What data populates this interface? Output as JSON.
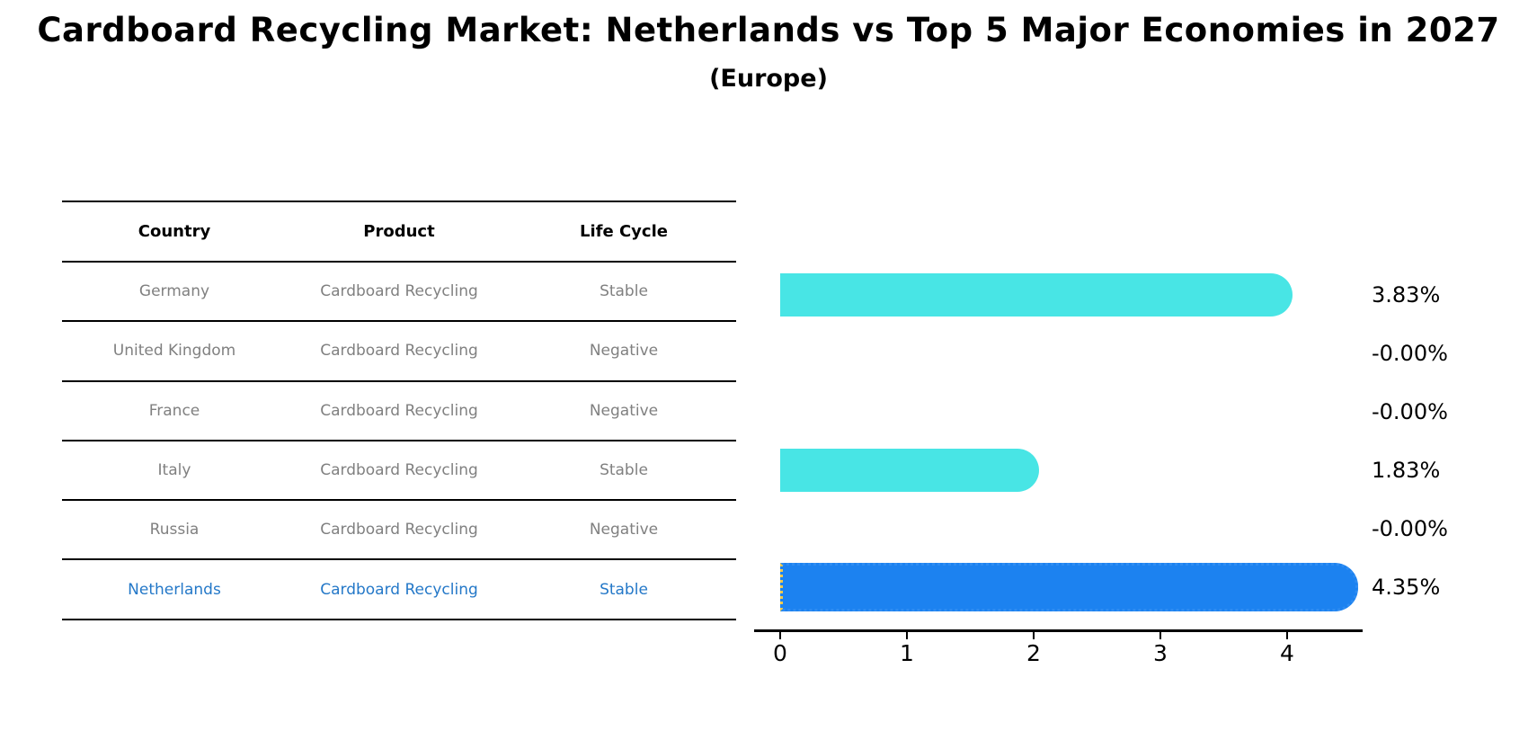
{
  "title": "Cardboard Recycling Market: Netherlands vs Top 5 Major Economies in 2027",
  "subtitle": "(Europe)",
  "colors": {
    "bar_default": "#48E5E5",
    "bar_highlight": "#1C82F0",
    "highlight_text": "#2478C8",
    "table_text": "#808080",
    "highlight_edge_left": "#F0C94B",
    "axis": "#000000"
  },
  "table": {
    "headers": [
      "Country",
      "Product",
      "Life Cycle"
    ],
    "rows": [
      {
        "country": "Germany",
        "product": "Cardboard Recycling",
        "life_cycle": "Stable",
        "highlight": false
      },
      {
        "country": "United Kingdom",
        "product": "Cardboard Recycling",
        "life_cycle": "Negative",
        "highlight": false
      },
      {
        "country": "France",
        "product": "Cardboard Recycling",
        "life_cycle": "Negative",
        "highlight": false
      },
      {
        "country": "Italy",
        "product": "Cardboard Recycling",
        "life_cycle": "Stable",
        "highlight": false
      },
      {
        "country": "Russia",
        "product": "Cardboard Recycling",
        "life_cycle": "Negative",
        "highlight": false
      },
      {
        "country": "Netherlands",
        "product": "Cardboard Recycling",
        "life_cycle": "Stable",
        "highlight": true
      }
    ]
  },
  "chart_data": {
    "type": "bar",
    "orientation": "horizontal",
    "title": "Cardboard Recycling Market: Netherlands vs Top 5 Major Economies in 2027",
    "subtitle": "(Europe)",
    "categories": [
      "Germany",
      "United Kingdom",
      "France",
      "Italy",
      "Russia",
      "Netherlands"
    ],
    "values": [
      3.83,
      -0.0,
      -0.0,
      1.83,
      -0.0,
      4.35
    ],
    "value_labels": [
      "3.83%",
      "-0.00%",
      "-0.00%",
      "1.83%",
      "-0.00%",
      "4.35%"
    ],
    "highlight_index": 5,
    "xlabel": "",
    "ylabel": "",
    "xticks": [
      "0",
      "1",
      "2",
      "3",
      "4"
    ],
    "xlim": [
      -0.2,
      4.6
    ],
    "grid": false,
    "legend": null
  }
}
